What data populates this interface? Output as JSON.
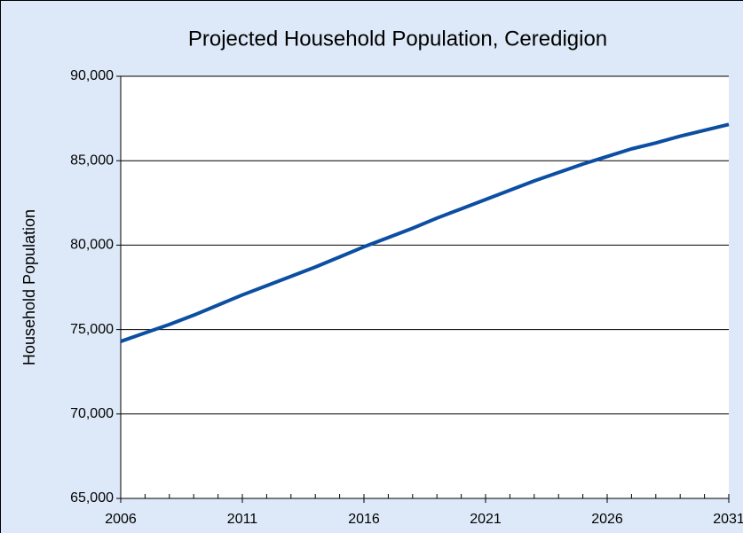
{
  "chart_data": {
    "type": "line",
    "title": "Projected Household Population, Ceredigion",
    "ylabel": "Household Population",
    "x": [
      2006,
      2007,
      2008,
      2009,
      2010,
      2011,
      2012,
      2013,
      2014,
      2015,
      2016,
      2017,
      2018,
      2019,
      2020,
      2021,
      2022,
      2023,
      2024,
      2025,
      2026,
      2027,
      2028,
      2029,
      2030,
      2031
    ],
    "series": [
      {
        "name": "Household Population",
        "color": "#0b4ea2",
        "values": [
          74300,
          74800,
          75300,
          75850,
          76450,
          77050,
          77600,
          78150,
          78700,
          79300,
          79900,
          80450,
          81000,
          81600,
          82150,
          82700,
          83250,
          83800,
          84300,
          84800,
          85250,
          85700,
          86050,
          86450,
          86800,
          87150
        ]
      }
    ],
    "xlim": [
      2006,
      2031
    ],
    "xticks": [
      2006,
      2011,
      2016,
      2021,
      2026,
      2031
    ],
    "ylim": [
      65000,
      90000
    ],
    "yticks": [
      {
        "value": 65000,
        "label": "65,000"
      },
      {
        "value": 70000,
        "label": "70,000"
      },
      {
        "value": 75000,
        "label": "75,000"
      },
      {
        "value": 80000,
        "label": "80,000"
      },
      {
        "value": 85000,
        "label": "85,000"
      },
      {
        "value": 90000,
        "label": "90,000"
      }
    ],
    "grid": true
  }
}
